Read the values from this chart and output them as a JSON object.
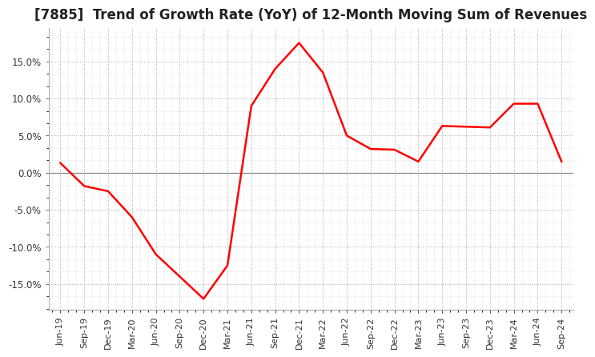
{
  "title": "[7885]  Trend of Growth Rate (YoY) of 12-Month Moving Sum of Revenues",
  "title_fontsize": 12,
  "line_color": "#ff0000",
  "background_color": "#ffffff",
  "grid_color": "#aaaaaa",
  "zero_line_color": "#888888",
  "ylim": [
    -0.185,
    0.195
  ],
  "yticks": [
    -0.15,
    -0.1,
    -0.05,
    0.0,
    0.05,
    0.1,
    0.15
  ],
  "dates": [
    "Jun-19",
    "Sep-19",
    "Dec-19",
    "Mar-20",
    "Jun-20",
    "Sep-20",
    "Dec-20",
    "Mar-21",
    "Jun-21",
    "Sep-21",
    "Dec-21",
    "Mar-22",
    "Jun-22",
    "Sep-22",
    "Dec-22",
    "Mar-23",
    "Jun-23",
    "Sep-23",
    "Dec-23",
    "Mar-24",
    "Jun-24",
    "Sep-24"
  ],
  "values": [
    0.013,
    -0.018,
    -0.025,
    -0.06,
    -0.11,
    -0.14,
    -0.17,
    -0.125,
    0.09,
    0.14,
    0.175,
    0.135,
    0.05,
    0.032,
    0.031,
    0.015,
    0.063,
    0.062,
    0.061,
    0.093,
    0.093,
    0.015
  ]
}
